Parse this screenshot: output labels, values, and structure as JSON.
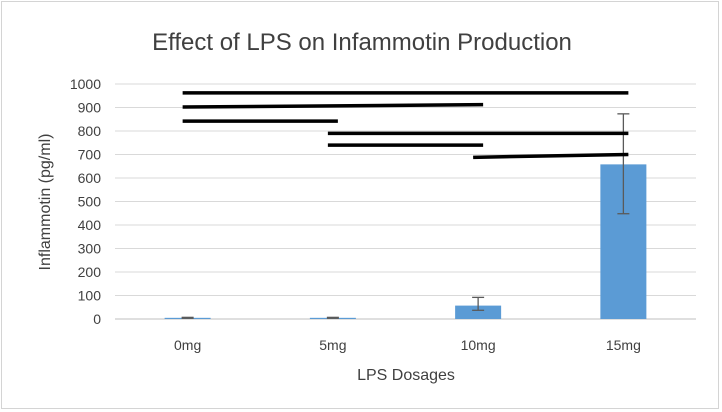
{
  "chart_data": {
    "type": "bar",
    "title": "Effect of LPS on Infammotin Production",
    "xlabel": "LPS Dosages",
    "ylabel": "Inflammotin (pg/ml)",
    "categories": [
      "0mg",
      "5mg",
      "10mg",
      "15mg"
    ],
    "values": [
      5,
      5,
      57,
      658
    ],
    "error_low": [
      2,
      2,
      20,
      210
    ],
    "error_high": [
      2,
      2,
      35,
      215
    ],
    "ylim": [
      0,
      1000
    ],
    "yticks": [
      0,
      100,
      200,
      300,
      400,
      500,
      600,
      700,
      800,
      900,
      1000
    ],
    "grid": true,
    "legend": "none",
    "bar_color": "#5b9bd5",
    "error_bar_color": "#5a5a5a",
    "gridline_color": "#d9d9d9",
    "text_color": "#404040",
    "significance_lines": [
      {
        "from": "0mg",
        "to": "15mg",
        "y": 962
      },
      {
        "from": "0mg",
        "to": "10mg",
        "y": 902,
        "y_end": 912
      },
      {
        "from": "0mg",
        "to": "5mg",
        "y": 842
      },
      {
        "from": "5mg",
        "to": "15mg",
        "y": 790
      },
      {
        "from": "5mg",
        "to": "10mg",
        "y": 740
      },
      {
        "from": "10mg",
        "to": "15mg",
        "y": 688,
        "y_end": 700
      }
    ]
  }
}
